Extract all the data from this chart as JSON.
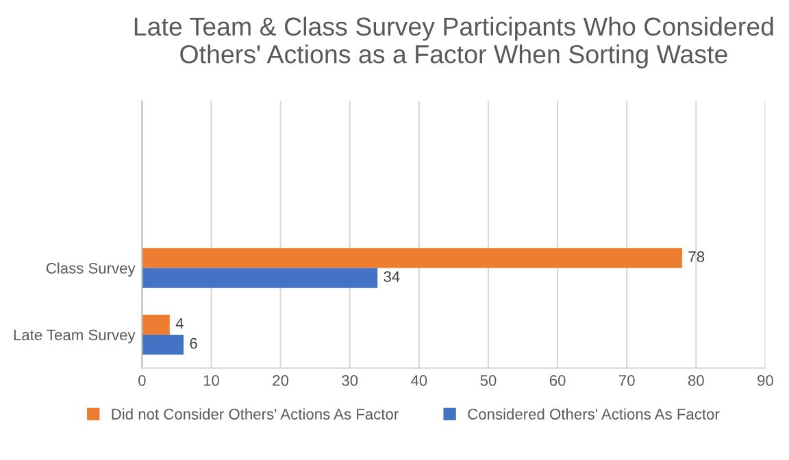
{
  "chart_data": {
    "type": "bar",
    "orientation": "horizontal",
    "title": "Late Team & Class Survey Participants Who Considered Others' Actions as a Factor When Sorting Waste",
    "categories": [
      null,
      null,
      "Class Survey",
      "Late Team Survey"
    ],
    "series": [
      {
        "name": "Did not Consider Others' Actions As Factor",
        "color": "#ed7d31",
        "values": [
          null,
          null,
          78,
          4
        ]
      },
      {
        "name": "Considered Others' Actions As Factor",
        "color": "#4472c4",
        "values": [
          null,
          null,
          34,
          6
        ]
      }
    ],
    "xlim": [
      0,
      90
    ],
    "xticks": [
      0,
      10,
      20,
      30,
      40,
      50,
      60,
      70,
      80,
      90
    ],
    "grid": "x",
    "legend": "bottom",
    "data_labels": true
  }
}
